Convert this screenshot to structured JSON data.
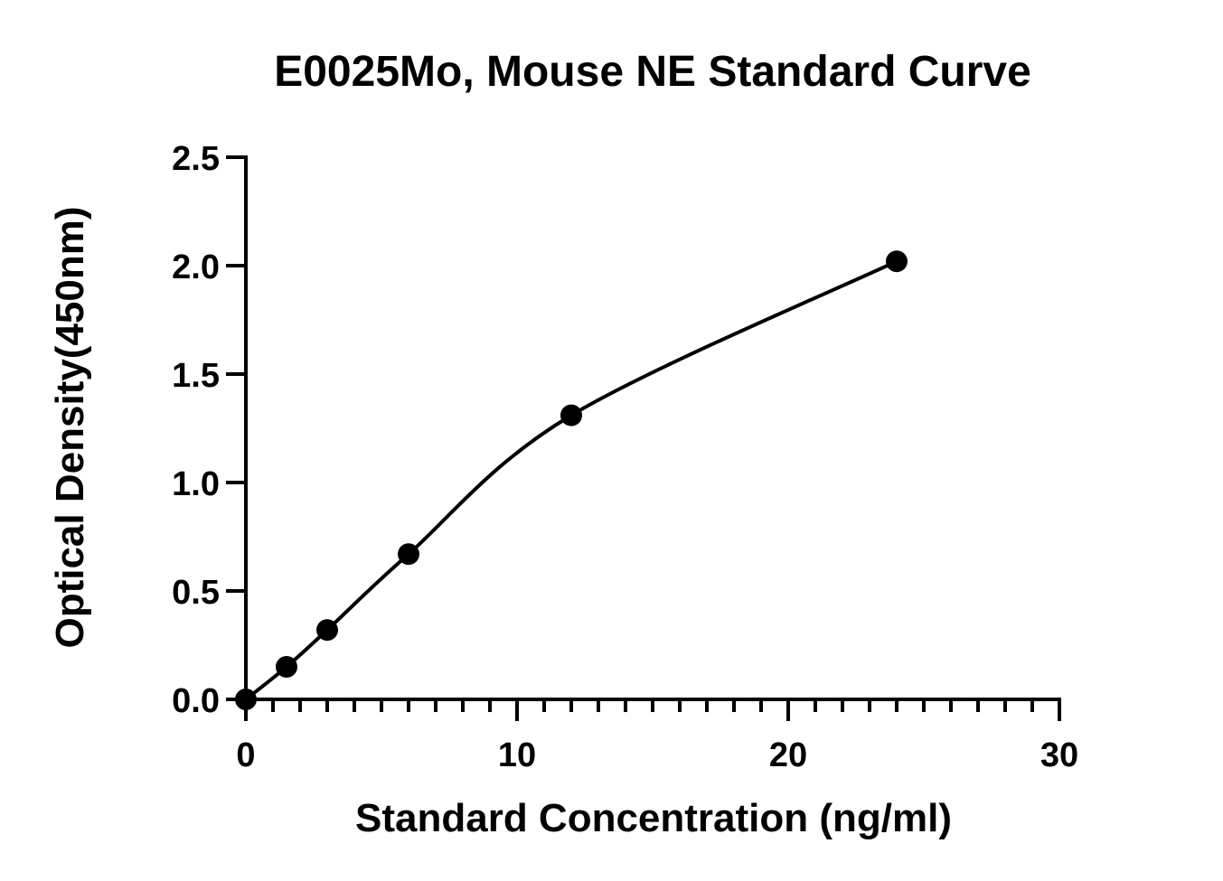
{
  "chart_data": {
    "type": "scatter",
    "title": "E0025Mo, Mouse NE Standard Curve",
    "xlabel": "Standard Concentration (ng/ml)",
    "ylabel": "Optical Density(450nm)",
    "xlim": [
      0,
      30
    ],
    "ylim": [
      0,
      2.5
    ],
    "x_ticks": [
      "0",
      "10",
      "20",
      "30"
    ],
    "y_ticks": [
      "0.0",
      "0.5",
      "1.0",
      "1.5",
      "2.0",
      "2.5"
    ],
    "x_minor_step": 1,
    "grid": false,
    "legend": "none",
    "fit_curve": true,
    "series": [
      {
        "x": [
          0,
          1.5,
          3,
          6,
          12,
          24
        ],
        "y": [
          0.0,
          0.15,
          0.32,
          0.67,
          1.31,
          2.02
        ]
      }
    ]
  }
}
